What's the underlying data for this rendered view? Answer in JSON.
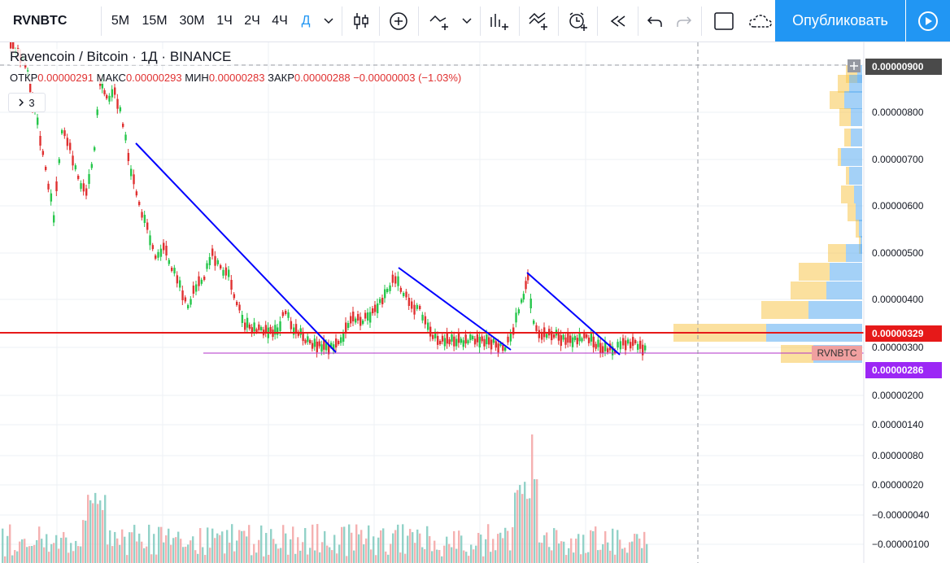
{
  "toolbar": {
    "symbol": "RVNBTC",
    "intervals": [
      "5М",
      "15М",
      "30М",
      "1Ч",
      "2Ч",
      "4Ч",
      "Д"
    ],
    "active_interval": "Д",
    "publish_label": "Опубликовать"
  },
  "legend": {
    "base": "Ravencoin",
    "sep": "/",
    "quote": "Bitcoin",
    "interval": "1Д",
    "exchange": "BINANCE",
    "open_label": "ОТКР",
    "open": "0.00000291",
    "high_label": "МАКС",
    "high": "0.00000293",
    "low_label": "МИН",
    "low": "0.00000283",
    "close_label": "ЗАКР",
    "close": "0.00000288",
    "change": "−0.00000003 (−1.03%)",
    "indicators_count": "3"
  },
  "price_axis": {
    "ticks": [
      "0.00000800",
      "0.00000700",
      "0.00000600",
      "0.00000500",
      "0.00000400",
      "0.00000300",
      "0.00000200",
      "0.00000140",
      "0.00000080",
      "0.00000020",
      "−0.00000040",
      "−0.00000100"
    ],
    "crosshair_price": "0.00000900",
    "red_line_price": "0.00000329",
    "last_price": "0.00000286",
    "symbol_label": "RVNBTC"
  },
  "colors": {
    "accent": "#2196f3",
    "up": "#26c64b",
    "down": "#e03131",
    "trendline": "#0000ff",
    "support_line": "#e61919",
    "last_price_line": "#b030c8",
    "last_price_badge": "#9c27f5",
    "vp_up": "#5aacf0",
    "vp_down": "#f7c64f"
  },
  "icons": [
    "bar-type-icon",
    "add-indicator-icon",
    "compare-icon",
    "chevron-down-icon",
    "indicators-icon",
    "templates-icon",
    "alert-icon",
    "replay-icon",
    "undo-icon",
    "redo-icon",
    "layout-icon",
    "cloud-save-icon",
    "play-icon"
  ]
}
